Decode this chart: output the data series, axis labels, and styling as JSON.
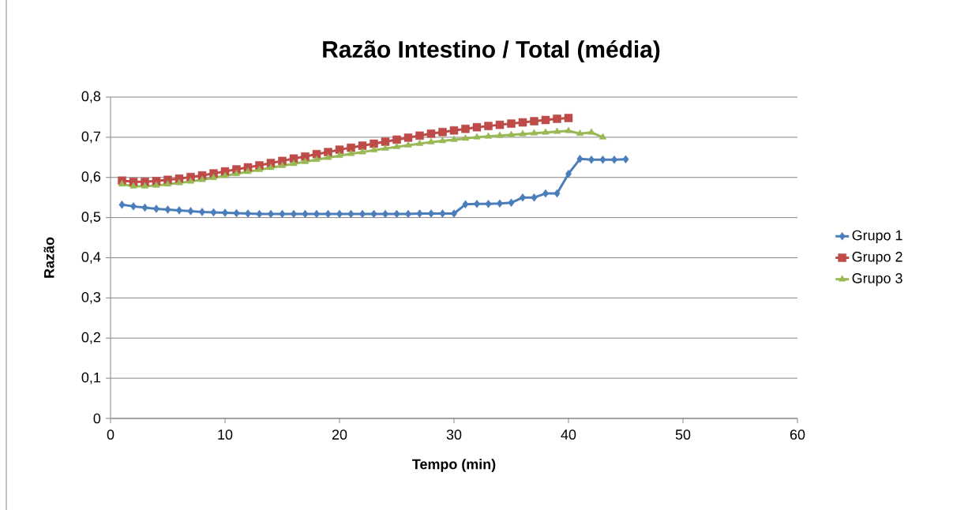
{
  "chart_data": {
    "type": "line",
    "title": "Razão Intestino / Total (média)",
    "xlabel": "Tempo (min)",
    "ylabel": "Razão",
    "xlim": [
      0,
      60
    ],
    "xticks": [
      0,
      10,
      20,
      30,
      40,
      50,
      60
    ],
    "ylim": [
      0,
      0.8
    ],
    "yticks": [
      0,
      {
        "value": 0.1,
        "label": "0,1"
      },
      {
        "value": 0.2,
        "label": "0,2"
      },
      {
        "value": 0.3,
        "label": "0,3"
      },
      {
        "value": 0.4,
        "label": "0,4"
      },
      {
        "value": 0.5,
        "label": "0,5"
      },
      {
        "value": 0.6,
        "label": "0,6"
      },
      {
        "value": 0.7,
        "label": "0,7"
      },
      {
        "value": 0.8,
        "label": "0,8"
      }
    ],
    "grid": "y",
    "legend": "right",
    "line_style": "solid",
    "series": [
      {
        "name": "Grupo 1",
        "color": "#4a7ebb",
        "marker": "diamond",
        "x": [
          1,
          2,
          3,
          4,
          5,
          6,
          7,
          8,
          9,
          10,
          11,
          12,
          13,
          14,
          15,
          16,
          17,
          18,
          19,
          20,
          21,
          22,
          23,
          24,
          25,
          26,
          27,
          28,
          29,
          30,
          31,
          32,
          33,
          34,
          35,
          36,
          37,
          38,
          39,
          40,
          41,
          42,
          43,
          44,
          45
        ],
        "values": [
          0.532,
          0.528,
          0.525,
          0.522,
          0.52,
          0.518,
          0.516,
          0.514,
          0.513,
          0.512,
          0.511,
          0.51,
          0.509,
          0.509,
          0.509,
          0.509,
          0.509,
          0.509,
          0.509,
          0.509,
          0.509,
          0.509,
          0.509,
          0.509,
          0.509,
          0.509,
          0.51,
          0.51,
          0.51,
          0.51,
          0.533,
          0.534,
          0.534,
          0.535,
          0.537,
          0.55,
          0.55,
          0.56,
          0.56,
          0.609,
          0.646,
          0.644,
          0.644,
          0.644,
          0.645
        ]
      },
      {
        "name": "Grupo 2",
        "color": "#be4b48",
        "marker": "square",
        "x": [
          1,
          2,
          3,
          4,
          5,
          6,
          7,
          8,
          9,
          10,
          11,
          12,
          13,
          14,
          15,
          16,
          17,
          18,
          19,
          20,
          21,
          22,
          23,
          24,
          25,
          26,
          27,
          28,
          29,
          30,
          31,
          32,
          33,
          34,
          35,
          36,
          37,
          38,
          39,
          40
        ],
        "values": [
          0.592,
          0.589,
          0.589,
          0.591,
          0.594,
          0.597,
          0.601,
          0.605,
          0.61,
          0.615,
          0.62,
          0.625,
          0.63,
          0.636,
          0.641,
          0.647,
          0.652,
          0.658,
          0.663,
          0.669,
          0.674,
          0.679,
          0.684,
          0.689,
          0.694,
          0.699,
          0.704,
          0.709,
          0.713,
          0.717,
          0.721,
          0.725,
          0.728,
          0.731,
          0.734,
          0.737,
          0.74,
          0.743,
          0.746,
          0.748
        ]
      },
      {
        "name": "Grupo 3",
        "color": "#98b954",
        "marker": "triangle",
        "x": [
          1,
          2,
          3,
          4,
          5,
          6,
          7,
          8,
          9,
          10,
          11,
          12,
          13,
          14,
          15,
          16,
          17,
          18,
          19,
          20,
          21,
          22,
          23,
          24,
          25,
          26,
          27,
          28,
          29,
          30,
          31,
          32,
          33,
          34,
          35,
          36,
          37,
          38,
          39,
          40,
          41,
          42,
          43
        ],
        "values": [
          0.583,
          0.578,
          0.578,
          0.58,
          0.583,
          0.586,
          0.59,
          0.594,
          0.599,
          0.604,
          0.609,
          0.614,
          0.619,
          0.624,
          0.629,
          0.634,
          0.639,
          0.644,
          0.649,
          0.654,
          0.659,
          0.663,
          0.668,
          0.672,
          0.676,
          0.68,
          0.684,
          0.688,
          0.691,
          0.694,
          0.697,
          0.7,
          0.702,
          0.704,
          0.706,
          0.708,
          0.71,
          0.712,
          0.714,
          0.716,
          0.709,
          0.712,
          0.7
        ]
      }
    ]
  }
}
